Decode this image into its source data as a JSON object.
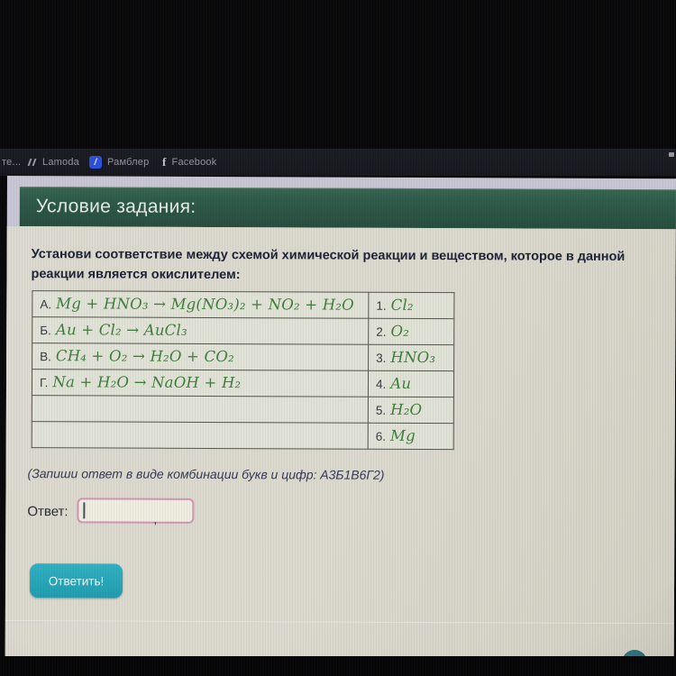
{
  "bookmarks_bar": {
    "overflow_label": "те...",
    "items": [
      {
        "label": "Lamoda"
      },
      {
        "label": "Рамблер",
        "icon_glyph": "/"
      },
      {
        "label": "Facebook",
        "icon_glyph": "f"
      }
    ]
  },
  "task_header": {
    "title": "Условие задания:"
  },
  "task": {
    "prompt": "Установи соответствие между схемой химической реакции и веществом, которое в данной реакции является окислителем:"
  },
  "match_table": {
    "rows": [
      {
        "label": "А.",
        "formula": "Mg + HNO₃ → Mg(NO₃)₂ + NO₂ + H₂O",
        "num": "1.",
        "answer": "Cl₂"
      },
      {
        "label": "Б.",
        "formula": "Au + Cl₂ → AuCl₃",
        "num": "2.",
        "answer": "O₂"
      },
      {
        "label": "В.",
        "formula": "CH₄ + O₂ → H₂O + CO₂",
        "num": "3.",
        "answer": "HNO₃"
      },
      {
        "label": "Г.",
        "formula": "Na + H₂O → NaOH + H₂",
        "num": "4.",
        "answer": "Au"
      },
      {
        "label": "",
        "formula": "",
        "num": "5.",
        "answer": "H₂O"
      },
      {
        "label": "",
        "formula": "",
        "num": "6.",
        "answer": "Mg"
      }
    ]
  },
  "hint": "(Запиши ответ в виде комбинации букв и цифр: А3Б1В6Г2)",
  "answer_field": {
    "label": "Ответ:",
    "value": "",
    "stray_mark": ","
  },
  "submit_button": {
    "label": "Ответить!"
  },
  "colors": {
    "header_green": "#2d5a49",
    "formula_green": "#3e7c38",
    "accent_teal": "#27a5b8",
    "input_border_pink": "#d394b2"
  }
}
